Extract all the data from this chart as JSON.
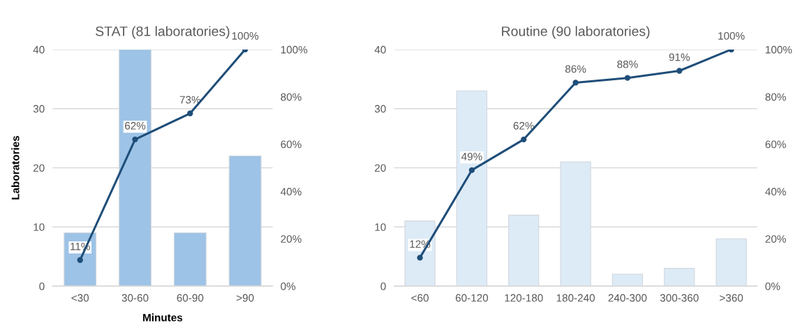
{
  "chart_data": [
    {
      "type": "bar",
      "title": "STAT (81 laboratories)",
      "xlabel": "Minutes",
      "ylabel": "Laboratories",
      "categories": [
        "<30",
        "30-60",
        "60-90",
        ">90"
      ],
      "series": [
        {
          "color": "#9dc3e6",
          "values": [
            9,
            40,
            9,
            22
          ]
        },
        {
          "type": "line",
          "axis": "y2",
          "color": "#1f4e79",
          "marker": "circle",
          "values": [
            11,
            62,
            73,
            100
          ],
          "value_labels": [
            "11%",
            "62%",
            "73%",
            "100%"
          ]
        }
      ],
      "ylim": [
        0,
        40
      ],
      "yticks": [
        0,
        10,
        20,
        30,
        40
      ],
      "y2lim": [
        0,
        100
      ],
      "y2ticks": [
        {
          "value": 0,
          "label": "0%"
        },
        {
          "value": 20,
          "label": "20%"
        },
        {
          "value": 40,
          "label": "40%"
        },
        {
          "value": 60,
          "label": "60%"
        },
        {
          "value": 80,
          "label": "80%"
        },
        {
          "value": 100,
          "label": "100%"
        }
      ],
      "grid": "y",
      "legend": false
    },
    {
      "type": "bar",
      "title": "Routine (90 laboratories)",
      "categories": [
        "<60",
        "60-120",
        "120-180",
        "180-240",
        "240-300",
        "300-360",
        ">360"
      ],
      "series": [
        {
          "color": "#ddebf7",
          "values": [
            11,
            33,
            12,
            21,
            2,
            3,
            8
          ]
        },
        {
          "type": "line",
          "axis": "y2",
          "color": "#1f4e79",
          "marker": "circle",
          "values": [
            12,
            49,
            62,
            86,
            88,
            91,
            100
          ],
          "value_labels": [
            "12%",
            "49%",
            "62%",
            "86%",
            "88%",
            "91%",
            "100%"
          ]
        }
      ],
      "ylim": [
        0,
        40
      ],
      "yticks": [
        0,
        10,
        20,
        30,
        40
      ],
      "y2lim": [
        0,
        100
      ],
      "y2ticks": [
        {
          "value": 0,
          "label": "0%"
        },
        {
          "value": 20,
          "label": "20%"
        },
        {
          "value": 40,
          "label": "40%"
        },
        {
          "value": 60,
          "label": "60%"
        },
        {
          "value": 80,
          "label": "80%"
        },
        {
          "value": 100,
          "label": "100%"
        }
      ],
      "grid": "y",
      "legend": false
    }
  ]
}
